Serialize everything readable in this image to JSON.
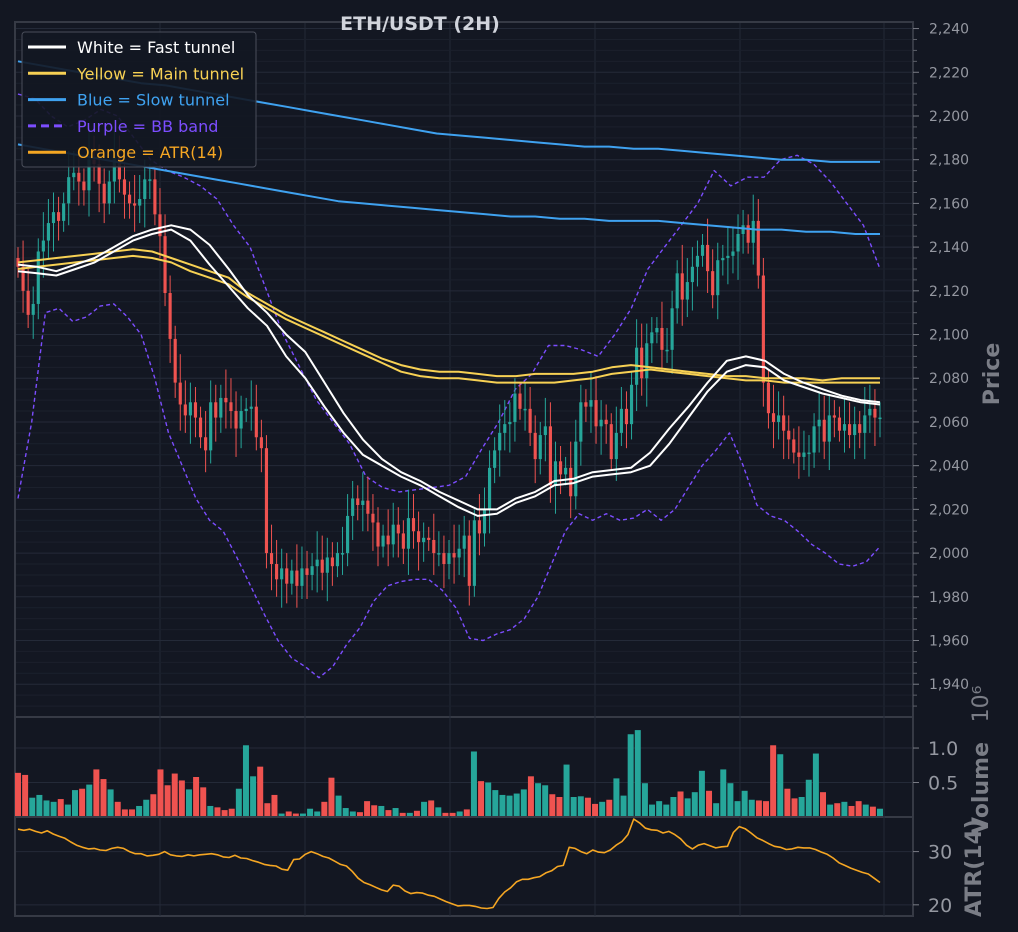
{
  "chart_data": [
    {
      "type": "candlestick",
      "title": "ETH/USDT (2H)",
      "ylabel": "Price",
      "ylim": [
        1925,
        2243
      ],
      "yticks": [
        "1,940",
        "1,960",
        "1,980",
        "2,000",
        "2,020",
        "2,040",
        "2,060",
        "2,080",
        "2,100",
        "2,120",
        "2,140",
        "2,160",
        "2,180",
        "2,200",
        "2,220",
        "2,240"
      ],
      "grid": true,
      "legend_position": "top-left",
      "legend": [
        {
          "label": "White = Fast tunnel",
          "color": "#ffffff",
          "style": "solid"
        },
        {
          "label": "Yellow = Main tunnel",
          "color": "#f7d154",
          "style": "solid"
        },
        {
          "label": "Blue = Slow tunnel",
          "color": "#3fa2f0",
          "style": "solid"
        },
        {
          "label": "Purple = BB band",
          "color": "#7c4dff",
          "style": "dashed"
        },
        {
          "label": "Orange = ATR(14)",
          "color": "#f5a623",
          "style": "solid"
        }
      ],
      "up_color": "#26a69a",
      "down_color": "#ef5350",
      "candle_closes": [
        2131,
        2120,
        2109,
        2114,
        2138,
        2143,
        2151,
        2156,
        2152,
        2160,
        2172,
        2174,
        2170,
        2166,
        2180,
        2178,
        2169,
        2160,
        2170,
        2181,
        2171,
        2164,
        2160,
        2159,
        2162,
        2171,
        2171,
        2155,
        2145,
        2119,
        2098,
        2078,
        2068,
        2063,
        2069,
        2062,
        2053,
        2047,
        2069,
        2062,
        2071,
        2069,
        2065,
        2057,
        2065,
        2066,
        2067,
        2053,
        2048,
        2000,
        1995,
        1988,
        1993,
        1986,
        1992,
        1985,
        1993,
        1990,
        1994,
        1997,
        1991,
        1998,
        1994,
        2000,
        2000,
        2017,
        2025,
        2022,
        2024,
        2018,
        2014,
        2003,
        2008,
        2004,
        2013,
        2009,
        2002,
        2016,
        2010,
        2005,
        2007,
        2006,
        2000,
        2000,
        1995,
        2000,
        1998,
        2002,
        2008,
        1985,
        2015,
        2009,
        2020,
        2039,
        2047,
        2055,
        2059,
        2060,
        2073,
        2066,
        2066,
        2055,
        2043,
        2054,
        2058,
        2031,
        2042,
        2036,
        2039,
        2026,
        2051,
        2069,
        2067,
        2070,
        2058,
        2061,
        2059,
        2043,
        2055,
        2066,
        2059,
        2077,
        2094,
        2080,
        2096,
        2101,
        2103,
        2093,
        2093,
        2112,
        2128,
        2116,
        2124,
        2131,
        2136,
        2141,
        2129,
        2118,
        2134,
        2135,
        2136,
        2138,
        2146,
        2150,
        2142,
        2152,
        2127,
        2078,
        2064,
        2060,
        2063,
        2056,
        2052,
        2046,
        2044,
        2046,
        2046,
        2058,
        2061,
        2051,
        2063,
        2062,
        2056,
        2059,
        2054,
        2059,
        2055,
        2063,
        2066,
        2062,
        2062
      ],
      "fast_tunnel_upper": [
        2132,
        2131,
        2129,
        2132,
        2135,
        2140,
        2145,
        2148,
        2150,
        2148,
        2141,
        2130,
        2118,
        2110,
        2100,
        2092,
        2078,
        2064,
        2052,
        2043,
        2037,
        2033,
        2028,
        2024,
        2020,
        2020,
        2025,
        2028,
        2033,
        2034,
        2037,
        2038,
        2039,
        2046,
        2057,
        2067,
        2078,
        2088,
        2090,
        2088,
        2082,
        2078,
        2075,
        2072,
        2070,
        2069
      ],
      "fast_tunnel_lower": [
        2129,
        2128,
        2127,
        2130,
        2133,
        2138,
        2143,
        2146,
        2148,
        2143,
        2132,
        2122,
        2112,
        2104,
        2090,
        2080,
        2067,
        2055,
        2045,
        2040,
        2035,
        2031,
        2026,
        2021,
        2017,
        2018,
        2023,
        2026,
        2031,
        2032,
        2035,
        2036,
        2037,
        2040,
        2050,
        2062,
        2074,
        2083,
        2086,
        2085,
        2079,
        2076,
        2073,
        2071,
        2069,
        2068
      ],
      "main_tunnel_upper": [
        2133,
        2134,
        2135,
        2136,
        2137,
        2138,
        2139,
        2138,
        2135,
        2132,
        2129,
        2126,
        2119,
        2114,
        2109,
        2105,
        2101,
        2097,
        2093,
        2089,
        2086,
        2084,
        2083,
        2083,
        2082,
        2081,
        2081,
        2082,
        2082,
        2082,
        2083,
        2085,
        2086,
        2085,
        2084,
        2083,
        2082,
        2081,
        2081,
        2080,
        2080,
        2080,
        2079,
        2080,
        2080,
        2080
      ],
      "main_tunnel_lower": [
        2130,
        2131,
        2132,
        2133,
        2134,
        2135,
        2136,
        2135,
        2133,
        2129,
        2126,
        2123,
        2117,
        2112,
        2107,
        2103,
        2099,
        2095,
        2091,
        2087,
        2083,
        2081,
        2080,
        2080,
        2079,
        2078,
        2078,
        2078,
        2078,
        2079,
        2080,
        2082,
        2083,
        2084,
        2083,
        2082,
        2081,
        2080,
        2079,
        2079,
        2078,
        2078,
        2078,
        2078,
        2078,
        2078
      ],
      "slow_tunnel_upper": [
        2225,
        2223,
        2221,
        2219,
        2217,
        2215,
        2214,
        2212,
        2210,
        2208,
        2206,
        2204,
        2202,
        2200,
        2198,
        2196,
        2194,
        2192,
        2191,
        2190,
        2189,
        2188,
        2187,
        2186,
        2186,
        2185,
        2185,
        2184,
        2183,
        2182,
        2181,
        2180,
        2180,
        2179,
        2179,
        2179
      ],
      "slow_tunnel_lower": [
        2187,
        2185,
        2183,
        2181,
        2179,
        2177,
        2175,
        2173,
        2171,
        2169,
        2167,
        2165,
        2163,
        2161,
        2160,
        2159,
        2158,
        2157,
        2156,
        2155,
        2154,
        2154,
        2153,
        2153,
        2152,
        2152,
        2152,
        2151,
        2150,
        2149,
        2148,
        2148,
        2147,
        2147,
        2146,
        2146
      ],
      "bb_upper": [
        2210,
        2208,
        2200,
        2195,
        2198,
        2203,
        2200,
        2190,
        2180,
        2175,
        2172,
        2168,
        2162,
        2150,
        2140,
        2120,
        2100,
        2085,
        2070,
        2060,
        2050,
        2035,
        2030,
        2028,
        2029,
        2030,
        2031,
        2035,
        2048,
        2060,
        2075,
        2082,
        2095,
        2095,
        2093,
        2090,
        2100,
        2112,
        2130,
        2140,
        2150,
        2160,
        2175,
        2168,
        2172,
        2172,
        2180,
        2182,
        2178,
        2170,
        2160,
        2150,
        2130
      ],
      "bb_lower": [
        2025,
        2060,
        2110,
        2112,
        2106,
        2108,
        2113,
        2114,
        2108,
        2100,
        2080,
        2055,
        2040,
        2025,
        2015,
        2010,
        1998,
        1985,
        1972,
        1960,
        1952,
        1948,
        1943,
        1948,
        1958,
        1966,
        1978,
        1985,
        1987,
        1988,
        1988,
        1983,
        1975,
        1961,
        1960,
        1963,
        1965,
        1970,
        1980,
        1995,
        2010,
        2018,
        2015,
        2018,
        2015,
        2016,
        2020,
        2015,
        2020,
        2030,
        2040,
        2047,
        2055,
        2040,
        2022,
        2017,
        2015,
        2010,
        2004,
        2000,
        1995,
        1994,
        1996,
        2003
      ]
    },
    {
      "type": "bar",
      "ylabel": "Volume",
      "scale_label": "10⁶",
      "ylim": [
        0,
        1.45
      ],
      "yticks": [
        "0.5",
        "1.0"
      ],
      "values": [
        0.64,
        0.61,
        0.28,
        0.32,
        0.24,
        0.22,
        0.26,
        0.18,
        0.39,
        0.41,
        0.47,
        0.69,
        0.55,
        0.4,
        0.22,
        0.11,
        0.11,
        0.16,
        0.25,
        0.33,
        0.69,
        0.46,
        0.63,
        0.53,
        0.4,
        0.58,
        0.43,
        0.16,
        0.14,
        0.1,
        0.12,
        0.41,
        1.04,
        0.59,
        0.73,
        0.2,
        0.32,
        0.05,
        0.08,
        0.05,
        0.05,
        0.12,
        0.08,
        0.22,
        0.57,
        0.31,
        0.13,
        0.08,
        0.07,
        0.23,
        0.17,
        0.16,
        0.1,
        0.13,
        0.06,
        0.06,
        0.09,
        0.22,
        0.24,
        0.14,
        0.06,
        0.06,
        0.08,
        0.11,
        0.95,
        0.52,
        0.5,
        0.39,
        0.32,
        0.31,
        0.34,
        0.4,
        0.59,
        0.49,
        0.46,
        0.33,
        0.29,
        0.76,
        0.29,
        0.3,
        0.28,
        0.19,
        0.22,
        0.25,
        0.56,
        0.31,
        1.2,
        1.26,
        0.49,
        0.18,
        0.23,
        0.18,
        0.29,
        0.37,
        0.27,
        0.36,
        0.67,
        0.38,
        0.2,
        0.69,
        0.49,
        0.23,
        0.38,
        0.25,
        0.24,
        0.23,
        1.04,
        0.91,
        0.41,
        0.27,
        0.29,
        0.54,
        0.92,
        0.36,
        0.18,
        0.2,
        0.22,
        0.16,
        0.23,
        0.18,
        0.15,
        0.12
      ]
    },
    {
      "type": "line",
      "ylabel": "ATR(14)",
      "ylim": [
        17.9,
        36.5
      ],
      "yticks": [
        "20",
        "30"
      ],
      "values": [
        34.2,
        34.0,
        34.2,
        33.8,
        33.5,
        33.9,
        33.3,
        32.9,
        32.5,
        31.8,
        31.2,
        30.8,
        30.5,
        30.6,
        30.3,
        30.2,
        30.6,
        30.8,
        30.6,
        30.0,
        29.6,
        29.6,
        29.2,
        29.3,
        29.5,
        30.0,
        29.4,
        29.2,
        29.1,
        29.4,
        29.2,
        29.4,
        29.5,
        29.6,
        29.4,
        29.0,
        28.9,
        29.3,
        28.8,
        28.7,
        28.3,
        28.0,
        27.6,
        27.4,
        27.3,
        26.7,
        26.5,
        28.5,
        28.6,
        29.5,
        30.0,
        29.6,
        29.1,
        28.8,
        28.2,
        27.6,
        27.3,
        26.3,
        25.0,
        24.2,
        23.8,
        23.3,
        22.8,
        22.5,
        23.7,
        23.5,
        22.6,
        22.1,
        22.3,
        22.2,
        21.8,
        21.6,
        21.1,
        20.6,
        20.2,
        19.8,
        19.9,
        19.9,
        19.7,
        19.4,
        19.3,
        19.5,
        21.2,
        22.4,
        23.2,
        24.3,
        24.8,
        24.8,
        25.1,
        25.3,
        26.0,
        26.4,
        27.2,
        27.4,
        30.8,
        30.6,
        30.0,
        29.6,
        30.3,
        29.9,
        29.8,
        30.3,
        31.2,
        31.9,
        33.2,
        36.1,
        35.4,
        34.4,
        34.1,
        34.0,
        33.5,
        33.8,
        33.2,
        32.4,
        31.2,
        30.5,
        31.2,
        31.5,
        31.1,
        30.7,
        30.9,
        31.0,
        33.6,
        34.7,
        34.3,
        33.5,
        32.6,
        32.1,
        31.5,
        31.0,
        30.8,
        30.4,
        30.5,
        30.8,
        30.7,
        30.7,
        30.4,
        29.9,
        29.5,
        28.8,
        27.9,
        27.4,
        26.9,
        26.5,
        26.1,
        25.8,
        25.0,
        24.2
      ]
    }
  ]
}
